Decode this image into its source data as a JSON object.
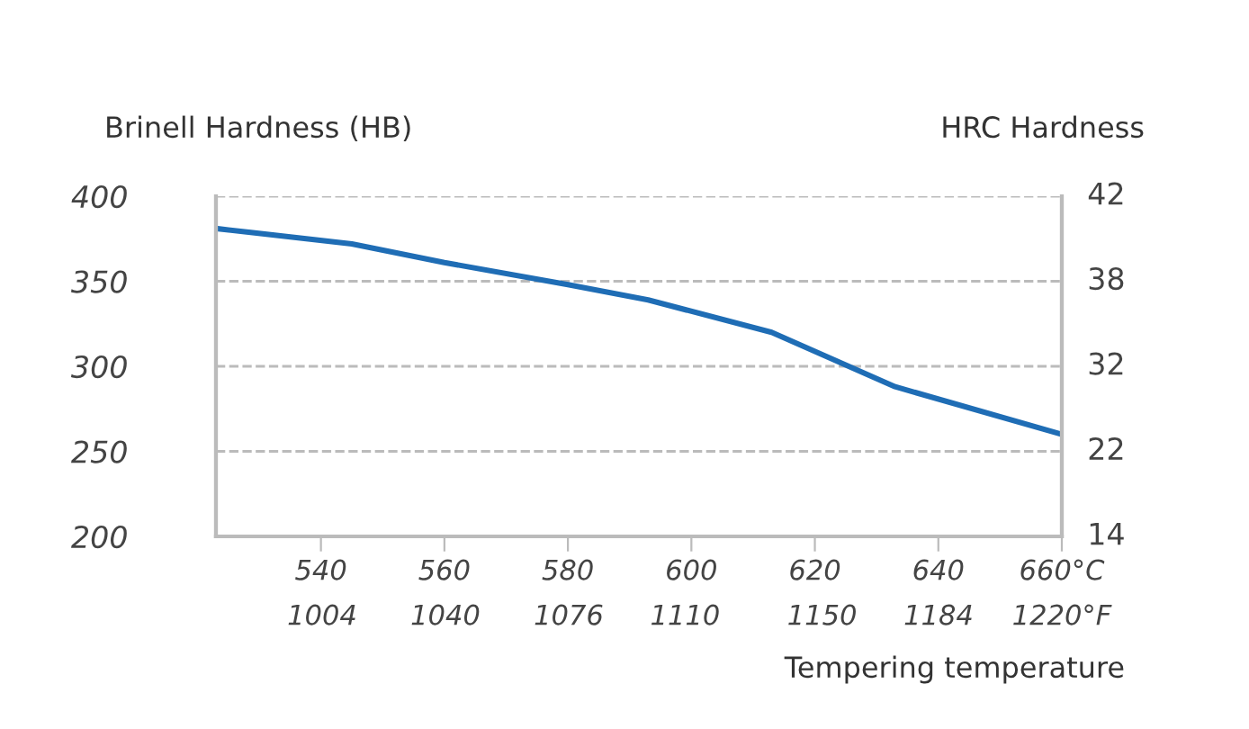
{
  "chart_data": {
    "type": "line",
    "ylabel": "Brinell Hardness (HB)",
    "y2label": "HRC Hardness",
    "xlabel": "Tempering temperature",
    "x": [
      523,
      545,
      560,
      580,
      593,
      613,
      633,
      660
    ],
    "series": [
      {
        "color": "#1f6db5",
        "values": [
          381,
          372,
          361,
          348,
          339,
          320,
          288,
          260
        ]
      }
    ],
    "xlim": [
      523,
      660
    ],
    "xticks": [
      540,
      560,
      580,
      600,
      620,
      640,
      {
        "value": 660,
        "label": "660°C"
      }
    ],
    "x2lim": [
      973,
      1220
    ],
    "x2ticks": [
      1004,
      1040,
      1076,
      1110,
      1150,
      1184,
      {
        "value": 1220,
        "label": "1220°F"
      }
    ],
    "ylim": [
      200,
      400
    ],
    "yticks": [
      200,
      250,
      300,
      350,
      400
    ],
    "annotations": [
      "14",
      "22",
      "32",
      "38",
      "42"
    ],
    "grid": "y",
    "legend": false,
    "marker": "none",
    "line_style": "solid"
  }
}
